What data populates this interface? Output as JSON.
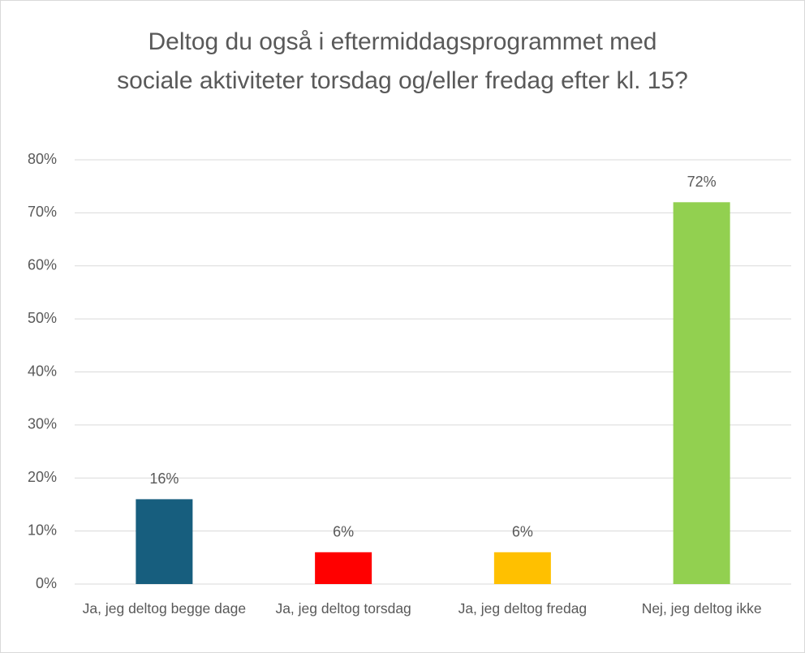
{
  "chart_data": {
    "type": "bar",
    "title": "Deltog du også i eftermiddagsprogrammet med sociale aktiviteter torsdag og/eller fredag efter kl. 15?",
    "categories": [
      "Ja, jeg deltog begge dage",
      "Ja, jeg deltog torsdag",
      "Ja, jeg deltog fredag",
      "Nej, jeg deltog ikke"
    ],
    "values": [
      16,
      6,
      6,
      72
    ],
    "value_labels": [
      "16%",
      "6%",
      "6%",
      "72%"
    ],
    "colors": [
      "#175e7e",
      "#ff0000",
      "#ffc000",
      "#92d050"
    ],
    "ylim": [
      0,
      80
    ],
    "yticks": [
      {
        "value": 0,
        "label": "0%"
      },
      {
        "value": 10,
        "label": "10%"
      },
      {
        "value": 20,
        "label": "20%"
      },
      {
        "value": 30,
        "label": "30%"
      },
      {
        "value": 40,
        "label": "40%"
      },
      {
        "value": 50,
        "label": "50%"
      },
      {
        "value": 60,
        "label": "60%"
      },
      {
        "value": 70,
        "label": "70%"
      },
      {
        "value": 80,
        "label": "80%"
      }
    ],
    "grid": true
  }
}
